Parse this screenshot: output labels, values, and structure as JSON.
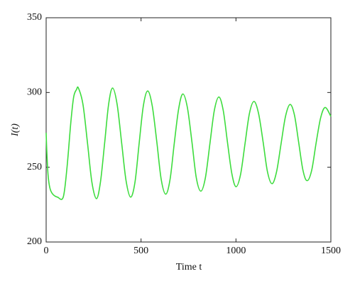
{
  "chart_data": {
    "type": "line",
    "xlabel": "Time t",
    "ylabel": "I(t)",
    "x": [
      0,
      3,
      10,
      20,
      35,
      60,
      90,
      110,
      130,
      145,
      160,
      170,
      194,
      218,
      241,
      265,
      286,
      308,
      329,
      350,
      374,
      398,
      421,
      445,
      468,
      490,
      512,
      535,
      559,
      583,
      606,
      630,
      653,
      675,
      698,
      720,
      744,
      768,
      791,
      815,
      839,
      863,
      886,
      910,
      933,
      955,
      978,
      1000,
      1024,
      1048,
      1071,
      1095,
      1119,
      1143,
      1166,
      1190,
      1214,
      1238,
      1261,
      1285,
      1308,
      1330,
      1353,
      1375,
      1399,
      1422,
      1446,
      1470,
      1500
    ],
    "series": [
      {
        "name": "I(t)",
        "color": "#3ddc3d",
        "values": [
          273,
          262,
          245,
          236,
          232,
          230,
          230,
          250,
          280,
          297,
          302,
          303,
          292,
          266,
          240,
          229,
          240,
          266,
          292,
          303,
          292,
          266,
          241,
          230,
          240,
          266,
          291,
          301,
          291,
          267,
          242,
          232,
          242,
          266,
          289,
          299,
          290,
          267,
          243,
          234,
          243,
          266,
          288,
          297,
          288,
          267,
          246,
          237,
          245,
          266,
          286,
          294,
          286,
          267,
          247,
          239,
          247,
          266,
          284,
          292,
          285,
          267,
          248,
          241,
          248,
          266,
          283,
          290,
          284
        ]
      }
    ],
    "xlim": [
      0,
      1500
    ],
    "xticks": [
      0,
      500,
      1000,
      1500
    ],
    "ylim": [
      200,
      350
    ],
    "yticks": [
      200,
      250,
      300,
      350
    ]
  }
}
